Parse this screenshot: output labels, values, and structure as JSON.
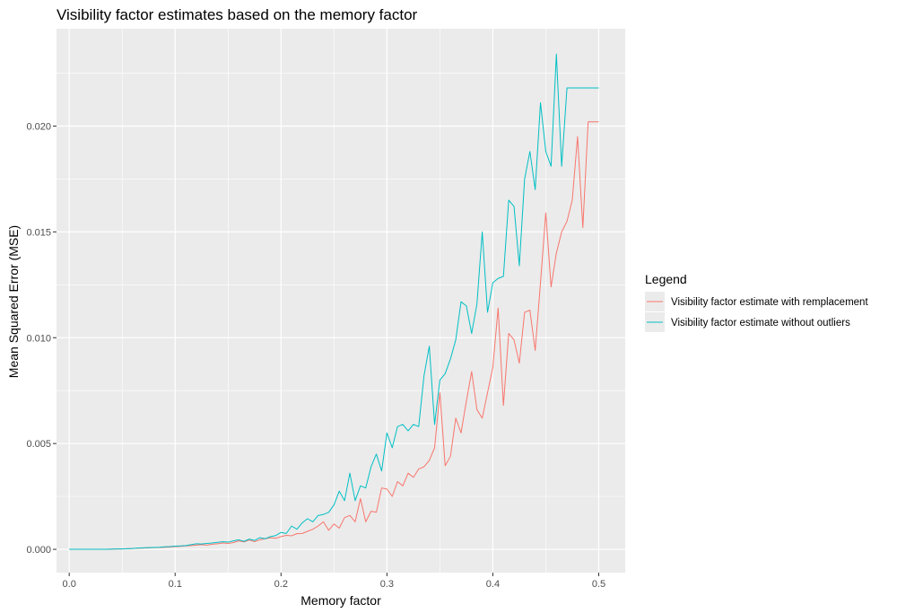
{
  "chart_data": {
    "type": "line",
    "title": "Visibility factor estimates based on the memory factor",
    "xlabel": "Memory factor",
    "ylabel": "Mean Squared Error (MSE)",
    "xlim": [
      -0.012,
      0.525
    ],
    "ylim": [
      -0.0011,
      0.0246
    ],
    "x_ticks": [
      0.0,
      0.1,
      0.2,
      0.3,
      0.4,
      0.5
    ],
    "x_tick_labels": [
      "0.0",
      "0.1",
      "0.2",
      "0.3",
      "0.4",
      "0.5"
    ],
    "y_ticks": [
      0.0,
      0.005,
      0.01,
      0.015,
      0.02
    ],
    "y_tick_labels": [
      "0.000",
      "0.005",
      "0.010",
      "0.015",
      "0.020"
    ],
    "grid": true,
    "legend": {
      "title": "Legend",
      "position": "right"
    },
    "x": [
      0.0,
      0.005,
      0.01,
      0.015,
      0.02,
      0.025,
      0.03,
      0.035,
      0.04,
      0.045,
      0.05,
      0.055,
      0.06,
      0.065,
      0.07,
      0.075,
      0.08,
      0.085,
      0.09,
      0.095,
      0.1,
      0.105,
      0.11,
      0.115,
      0.12,
      0.125,
      0.13,
      0.135,
      0.14,
      0.145,
      0.15,
      0.155,
      0.16,
      0.165,
      0.17,
      0.175,
      0.18,
      0.185,
      0.19,
      0.195,
      0.2,
      0.205,
      0.21,
      0.215,
      0.22,
      0.225,
      0.23,
      0.235,
      0.24,
      0.245,
      0.25,
      0.255,
      0.26,
      0.265,
      0.27,
      0.275,
      0.28,
      0.285,
      0.29,
      0.295,
      0.3,
      0.305,
      0.31,
      0.315,
      0.32,
      0.325,
      0.33,
      0.335,
      0.34,
      0.345,
      0.35,
      0.355,
      0.36,
      0.365,
      0.37,
      0.375,
      0.38,
      0.385,
      0.39,
      0.395,
      0.4,
      0.405,
      0.41,
      0.415,
      0.42,
      0.425,
      0.43,
      0.435,
      0.44,
      0.445,
      0.45,
      0.455,
      0.46,
      0.465,
      0.47,
      0.475,
      0.48,
      0.485,
      0.49,
      0.495,
      0.5
    ],
    "series": [
      {
        "name": "Visibility factor estimate with remplacement",
        "color": "#F8766D",
        "values": [
          0.0,
          0.0,
          0.0,
          0.0,
          0.0,
          0.0,
          0.0,
          0.0,
          1e-05,
          2e-05,
          2e-05,
          3e-05,
          4e-05,
          5e-05,
          6e-05,
          7e-05,
          8e-05,
          9e-05,
          0.0001,
          0.00011,
          0.00013,
          0.00014,
          0.00016,
          0.00018,
          0.0002,
          0.00022,
          0.0002,
          0.00024,
          0.00026,
          0.0003,
          0.00028,
          0.00032,
          0.0004,
          0.00035,
          0.00044,
          0.00036,
          0.00045,
          0.0005,
          0.00055,
          0.00052,
          0.0006,
          0.00066,
          0.00064,
          0.00074,
          0.00075,
          0.00085,
          0.00095,
          0.0011,
          0.0013,
          0.0009,
          0.0012,
          0.001,
          0.0015,
          0.0016,
          0.0013,
          0.0024,
          0.0013,
          0.0018,
          0.00175,
          0.0029,
          0.00285,
          0.0025,
          0.0032,
          0.003,
          0.0036,
          0.0034,
          0.0038,
          0.0039,
          0.0042,
          0.0048,
          0.0074,
          0.00395,
          0.0044,
          0.0062,
          0.0055,
          0.007,
          0.0084,
          0.0066,
          0.0062,
          0.0074,
          0.0086,
          0.0114,
          0.0068,
          0.0102,
          0.0099,
          0.0088,
          0.0112,
          0.0113,
          0.0094,
          0.0126,
          0.0159,
          0.0124,
          0.014,
          0.015,
          0.0155,
          0.0165,
          0.0195,
          0.0152,
          0.0202,
          0.0202,
          0.0202
        ]
      },
      {
        "name": "Visibility factor estimate without outliers",
        "color": "#00BFC4",
        "values": [
          0.0,
          0.0,
          0.0,
          0.0,
          0.0,
          0.0,
          0.0,
          0.0,
          1e-05,
          2e-05,
          2e-05,
          3e-05,
          4e-05,
          6e-05,
          7e-05,
          8e-05,
          9e-05,
          0.0001,
          0.00012,
          0.00013,
          0.00015,
          0.00016,
          0.00018,
          0.00022,
          0.00026,
          0.00025,
          0.00028,
          0.0003,
          0.00033,
          0.00036,
          0.00034,
          0.0004,
          0.00045,
          0.00038,
          0.00048,
          0.00042,
          0.00055,
          0.0005,
          0.0006,
          0.00065,
          0.0008,
          0.00075,
          0.0011,
          0.00095,
          0.00125,
          0.00145,
          0.0013,
          0.0016,
          0.00165,
          0.00175,
          0.0021,
          0.00275,
          0.0023,
          0.0036,
          0.0023,
          0.003,
          0.0029,
          0.0039,
          0.0045,
          0.0037,
          0.0055,
          0.0048,
          0.0058,
          0.0059,
          0.0056,
          0.0059,
          0.0058,
          0.0082,
          0.0096,
          0.0059,
          0.008,
          0.0083,
          0.009,
          0.0099,
          0.0117,
          0.0115,
          0.0102,
          0.0116,
          0.015,
          0.0112,
          0.0126,
          0.0128,
          0.0129,
          0.0165,
          0.0162,
          0.0134,
          0.0175,
          0.0188,
          0.017,
          0.0211,
          0.0188,
          0.0181,
          0.0234,
          0.0181,
          0.0218,
          0.0218,
          0.0218,
          0.0218,
          0.0218,
          0.0218,
          0.0218
        ]
      }
    ]
  }
}
